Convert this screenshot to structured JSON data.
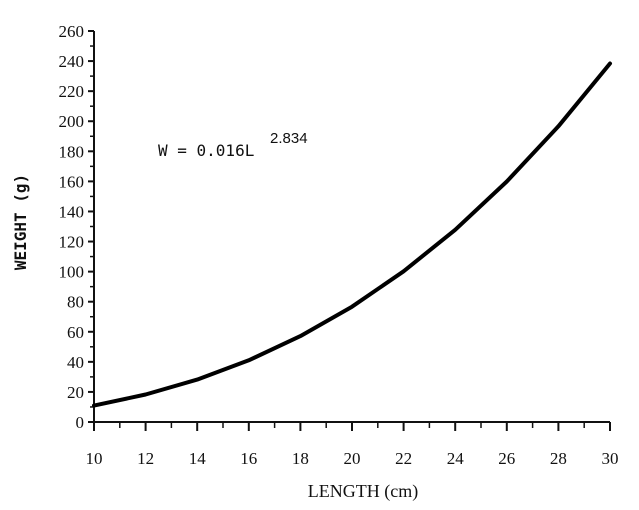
{
  "chart_data": {
    "type": "line",
    "title": "",
    "xlabel": "LENGTH (cm)",
    "ylabel": "WEIGHT (g)",
    "xlim": [
      10,
      30
    ],
    "ylim": [
      0,
      260
    ],
    "x_ticks": [
      10,
      12,
      14,
      16,
      18,
      20,
      22,
      24,
      26,
      28,
      30
    ],
    "y_ticks": [
      0,
      20,
      40,
      60,
      80,
      100,
      120,
      140,
      160,
      180,
      200,
      220,
      240,
      260
    ],
    "grid": false,
    "annotation": {
      "base": "W = 0.016L",
      "exponent": "2.834"
    },
    "series": [
      {
        "x": [
          10,
          12,
          14,
          16,
          18,
          20,
          22,
          24,
          26,
          28,
          30
        ],
        "y": [
          10.9,
          18.3,
          28.2,
          41.0,
          57.1,
          76.7,
          100.2,
          127.8,
          159.9,
          196.6,
          238.4
        ]
      }
    ]
  }
}
